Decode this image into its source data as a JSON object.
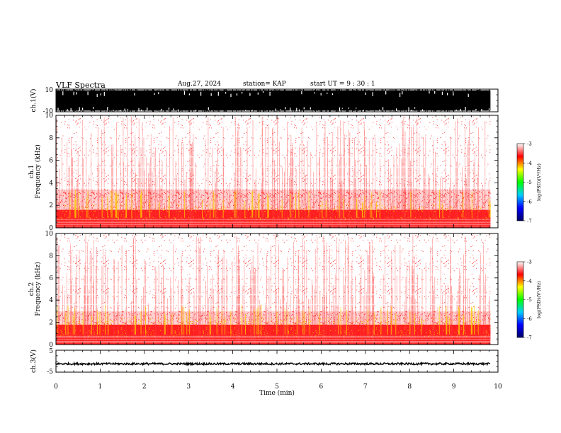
{
  "header": {
    "title": "VLF Spectra",
    "date": "Aug.27, 2024",
    "station": "station= KAP",
    "start": "start  UT =   9 : 30 : 1"
  },
  "chart_data": [
    {
      "type": "line",
      "panel": "ch1-waveform",
      "ylabel": "ch.1(V)",
      "ylim": [
        -10,
        10
      ],
      "yticks": [
        "10",
        "-10"
      ],
      "xlim": [
        0,
        10
      ],
      "x_end": 9.83,
      "note": "saturated waveform spanning approximately -10 to 10 V"
    },
    {
      "type": "heatmap",
      "panel": "ch1-spectrogram",
      "ylabel": "ch.1\nFrequency  (kHz)",
      "ylim": [
        0,
        10
      ],
      "yticks": [
        "0",
        "2",
        "4",
        "6",
        "8",
        "10"
      ],
      "xlim": [
        0,
        10
      ],
      "x_end": 9.83,
      "bands_khz": [
        [
          0.0,
          1.6,
          "strong"
        ],
        [
          1.6,
          3.4,
          "moderate"
        ],
        [
          3.4,
          10,
          "weak"
        ]
      ],
      "colorbar": {
        "label": "log(PSD)(V²/Hz)",
        "range": [
          -7,
          -3
        ],
        "ticks": [
          "-3",
          "-4",
          "-5",
          "-6",
          "-7"
        ],
        "colors": [
          "#000066",
          "#0000ff",
          "#00ccff",
          "#00ff00",
          "#ffff00",
          "#ff0000",
          "#ffffff"
        ]
      }
    },
    {
      "type": "heatmap",
      "panel": "ch2-spectrogram",
      "ylabel": "ch.2\nFrequency  (kHz)",
      "ylim": [
        0,
        10
      ],
      "yticks": [
        "0",
        "2",
        "4",
        "6",
        "8",
        "10"
      ],
      "xlim": [
        0,
        10
      ],
      "x_end": 9.83,
      "bands_khz": [
        [
          0.0,
          1.8,
          "strong"
        ],
        [
          1.8,
          3.0,
          "moderate"
        ],
        [
          3.0,
          10,
          "weak"
        ]
      ],
      "colorbar": {
        "label": "log(PSD)(V²/Hz)",
        "range": [
          -7,
          -3
        ],
        "ticks": [
          "-3",
          "-4",
          "-5",
          "-6",
          "-7"
        ],
        "colors": [
          "#000066",
          "#0000ff",
          "#00ccff",
          "#00ff00",
          "#ffff00",
          "#ff0000",
          "#ffffff"
        ]
      }
    },
    {
      "type": "line",
      "panel": "ch3-waveform",
      "ylabel": "ch.3(V)",
      "ylim": [
        -5,
        5
      ],
      "yticks": [
        "5",
        "-5"
      ],
      "xlim": [
        0,
        10
      ],
      "x_end": 9.83,
      "mean_value": -1.2,
      "xlabel": "Time  (min)",
      "xticks": [
        "0",
        "1",
        "2",
        "3",
        "4",
        "5",
        "6",
        "7",
        "8",
        "9",
        "10"
      ]
    }
  ]
}
